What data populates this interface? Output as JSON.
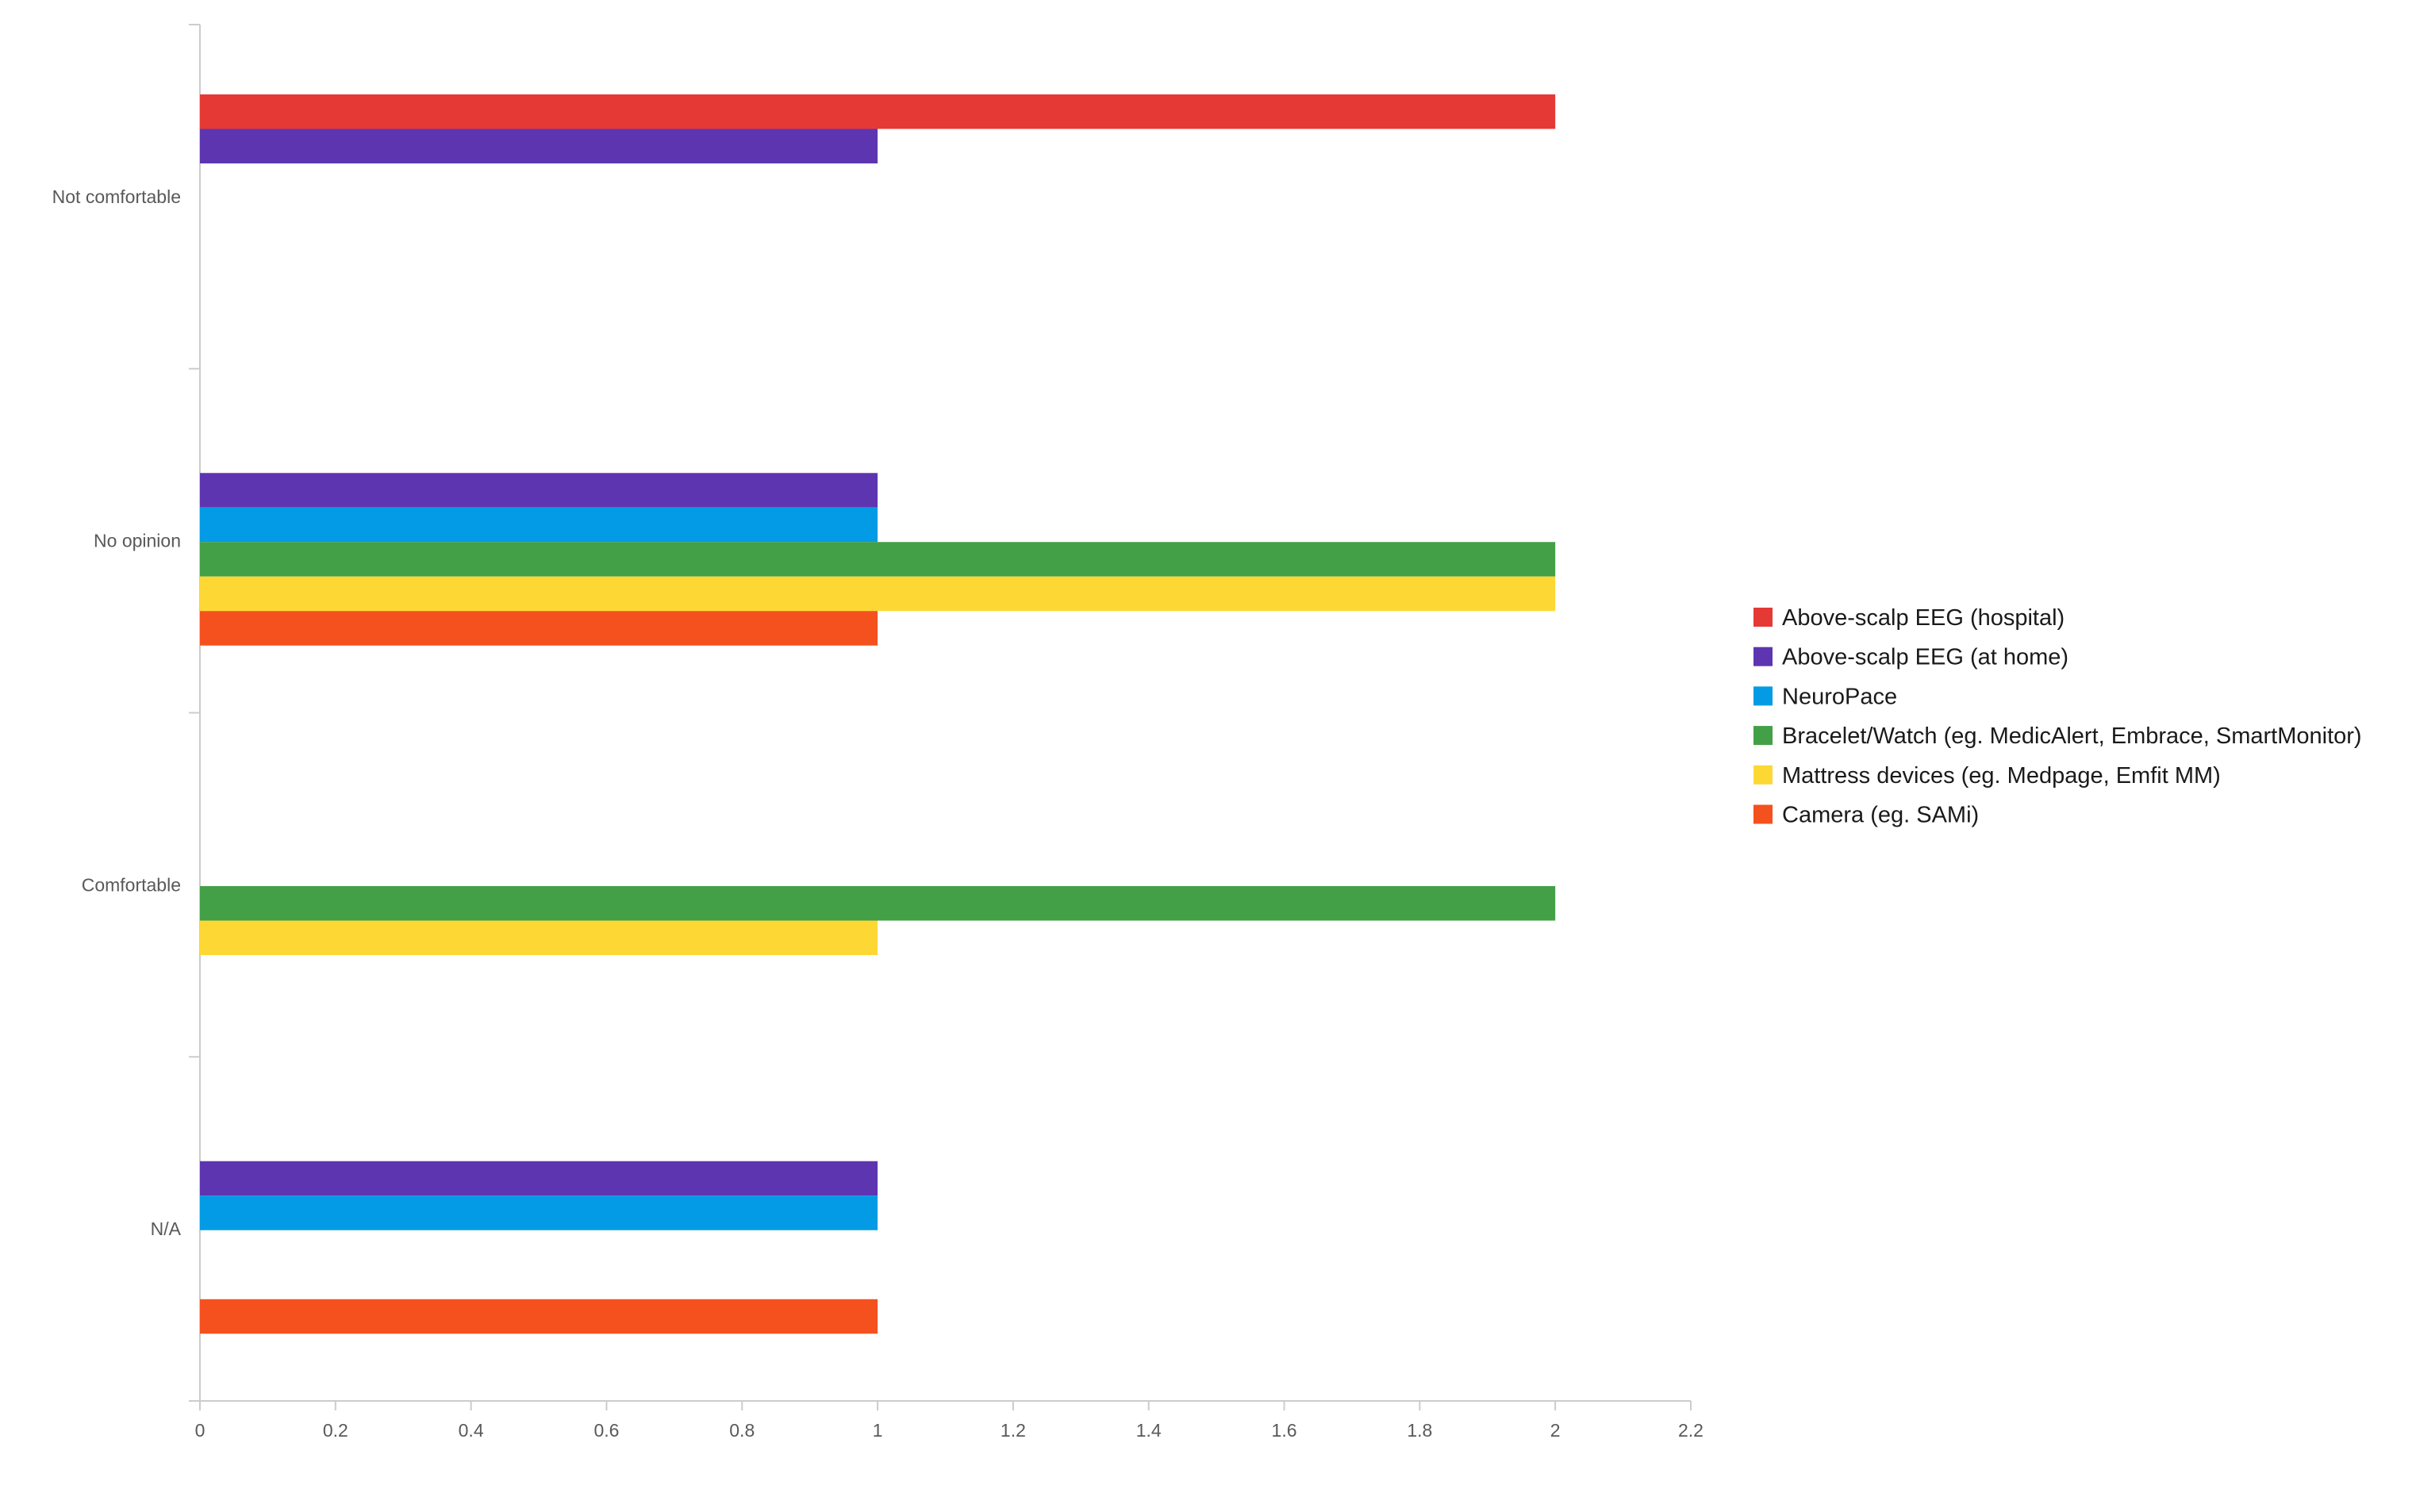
{
  "chart_data": {
    "type": "bar",
    "orientation": "horizontal",
    "title": "",
    "xlabel": "",
    "ylabel": "",
    "xlim": [
      0,
      2.2
    ],
    "x_ticks": [
      0,
      0.2,
      0.4,
      0.6,
      0.8,
      1,
      1.2,
      1.4,
      1.6,
      1.8,
      2,
      2.2
    ],
    "x_tick_labels": [
      "0",
      "0.2",
      "0.4",
      "0.6",
      "0.8",
      "1",
      "1.2",
      "1.4",
      "1.6",
      "1.8",
      "2",
      "2.2"
    ],
    "grid": false,
    "legend_position": "right",
    "categories": [
      "Not comfortable",
      "No opinion",
      "Comfortable",
      "N/A"
    ],
    "series": [
      {
        "name": "Above-scalp EEG (hospital)",
        "color": "#e53935",
        "values": [
          2,
          0,
          0,
          0
        ]
      },
      {
        "name": "Above-scalp EEG (at home)",
        "color": "#5e35b1",
        "values": [
          1,
          1,
          0,
          1
        ]
      },
      {
        "name": "NeuroPace",
        "color": "#039be5",
        "values": [
          0,
          1,
          0,
          1
        ]
      },
      {
        "name": "Bracelet/Watch (eg. MedicAlert, Embrace, SmartMonitor)",
        "color": "#43a047",
        "values": [
          0,
          2,
          2,
          0
        ]
      },
      {
        "name": "Mattress devices (eg. Medpage, Emfit MM)",
        "color": "#fdd835",
        "values": [
          0,
          2,
          1,
          0
        ]
      },
      {
        "name": "Camera (eg. SAMi)",
        "color": "#f4511e",
        "values": [
          0,
          1,
          0,
          1
        ]
      }
    ]
  }
}
